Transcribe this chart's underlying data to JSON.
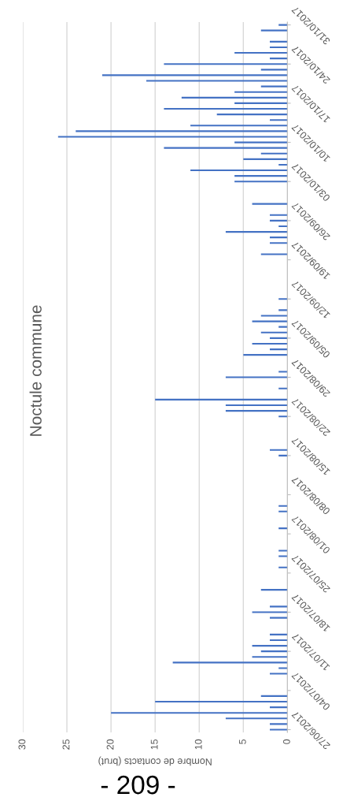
{
  "chart_data": {
    "type": "bar",
    "orientation": "horizontal",
    "title": "Noctule commune",
    "xlabel": "Nombre de contacts (brut)",
    "annotations": [
      "- 209 -"
    ],
    "categories": [
      "31/10/2017",
      null,
      null,
      null,
      null,
      null,
      null,
      "24/10/2017",
      null,
      null,
      null,
      null,
      null,
      null,
      "17/10/2017",
      null,
      null,
      null,
      null,
      null,
      null,
      "10/10/2017",
      null,
      null,
      null,
      null,
      null,
      null,
      "03/10/2017",
      null,
      null,
      null,
      null,
      null,
      null,
      "26/09/2017",
      null,
      null,
      null,
      null,
      null,
      null,
      "19/09/2017",
      null,
      null,
      null,
      null,
      null,
      null,
      "12/09/2017",
      null,
      null,
      null,
      null,
      null,
      null,
      "05/09/2017",
      null,
      null,
      null,
      null,
      null,
      null,
      "29/08/2017",
      null,
      null,
      null,
      null,
      null,
      null,
      "22/08/2017",
      null,
      null,
      null,
      null,
      null,
      null,
      "15/08/2017",
      null,
      null,
      null,
      null,
      null,
      null,
      "08/08/2017",
      null,
      null,
      null,
      null,
      null,
      null,
      "01/08/2017",
      null,
      null,
      null,
      null,
      null,
      null,
      "25/07/2017",
      null,
      null,
      null,
      null,
      null,
      null,
      "18/07/2017",
      null,
      null,
      null,
      null,
      null,
      null,
      "11/07/2017",
      null,
      null,
      null,
      null,
      null,
      null,
      "04/07/2017",
      null,
      null,
      null,
      null,
      null,
      null,
      "27/06/2017"
    ],
    "series": [
      {
        "color": "#4472c4",
        "values": [
          1,
          3,
          null,
          2,
          2,
          6,
          2,
          14,
          3,
          21,
          16,
          3,
          6,
          12,
          6,
          14,
          8,
          2,
          11,
          24,
          26,
          6,
          14,
          3,
          5,
          1,
          11,
          6,
          6,
          null,
          null,
          null,
          4,
          null,
          2,
          2,
          1,
          7,
          2,
          2,
          null,
          3,
          null,
          null,
          null,
          null,
          null,
          null,
          null,
          1,
          null,
          1,
          3,
          4,
          1,
          3,
          2,
          4,
          2,
          5,
          null,
          null,
          1,
          7,
          null,
          1,
          null,
          15,
          7,
          7,
          1,
          null,
          null,
          null,
          null,
          null,
          2,
          1,
          null,
          null,
          null,
          null,
          null,
          null,
          null,
          null,
          1,
          1,
          null,
          null,
          1,
          null,
          null,
          null,
          1,
          1,
          null,
          1,
          null,
          null,
          null,
          3,
          null,
          null,
          2,
          4,
          2,
          null,
          null,
          2,
          2,
          4,
          3,
          4,
          13,
          1,
          2,
          null,
          null,
          null,
          3,
          15,
          2,
          20,
          7,
          2,
          2
        ]
      }
    ],
    "xlim": [
      30,
      0
    ],
    "xticks": [
      0,
      5,
      10,
      15,
      20,
      25,
      30
    ],
    "grid": "x"
  }
}
